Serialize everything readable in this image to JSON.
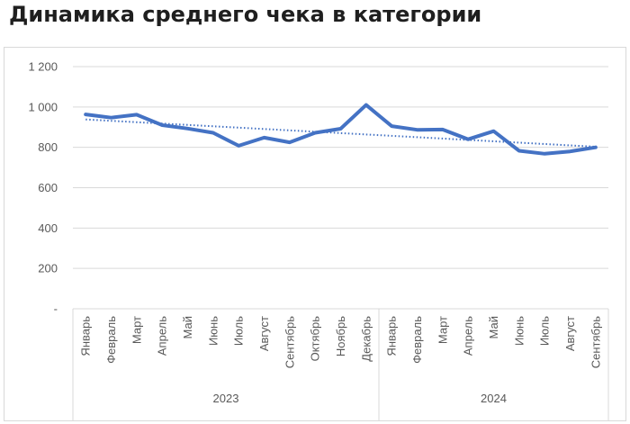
{
  "title": "Динамика среднего чека в категории",
  "chart_data": {
    "type": "line",
    "title": "Динамика среднего чека в категории",
    "xlabel": "",
    "ylabel": "",
    "ylim": [
      0,
      1200
    ],
    "y_ticks": [
      0,
      200,
      400,
      600,
      800,
      1000,
      1200
    ],
    "y_tick_labels": [
      "-",
      "200",
      "400",
      "600",
      "800",
      "1 000",
      "1 200"
    ],
    "grid": true,
    "legend": "none",
    "groups": [
      {
        "label": "2023",
        "categories": [
          "Январь",
          "Февраль",
          "Март",
          "Апрель",
          "Май",
          "Июнь",
          "Июль",
          "Август",
          "Сентябрь",
          "Октябрь",
          "Ноябрь",
          "Декабрь"
        ]
      },
      {
        "label": "2024",
        "categories": [
          "Январь",
          "Февраль",
          "Март",
          "Апрель",
          "Май",
          "Июнь",
          "Июль",
          "Август",
          "Сентябрь"
        ]
      }
    ],
    "series": [
      {
        "values": [
          963,
          947,
          962,
          910,
          893,
          872,
          808,
          848,
          825,
          872,
          892,
          1010,
          905,
          887,
          888,
          840,
          880,
          783,
          768,
          780,
          800
        ],
        "color": "#4472c4"
      }
    ],
    "trendline": {
      "type": "linear",
      "style": "dotted",
      "start": 938,
      "end": 803,
      "color": "#4472c4"
    }
  }
}
